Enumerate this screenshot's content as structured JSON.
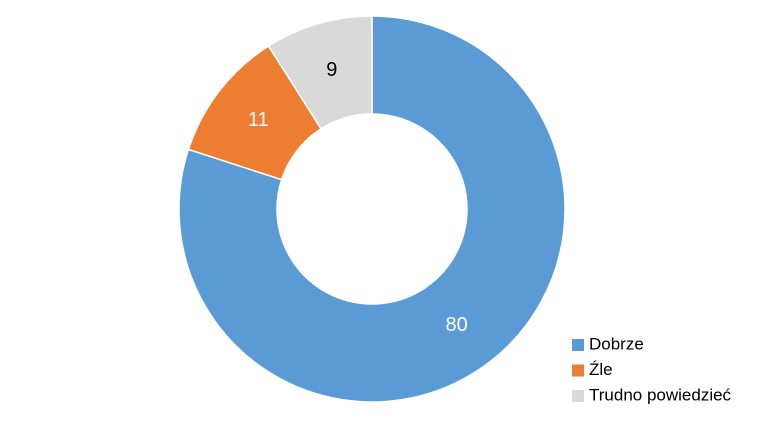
{
  "chart_data": {
    "type": "donut",
    "categories": [
      "Dobrze",
      "Źle",
      "Trudno powiedzieć"
    ],
    "values": [
      80,
      11,
      9
    ],
    "colors": [
      "#5b9bd5",
      "#ed7d31",
      "#d9d9d9"
    ],
    "label_colors": [
      "#ffffff",
      "#ffffff",
      "#000000"
    ],
    "legend": "bottom-right"
  }
}
